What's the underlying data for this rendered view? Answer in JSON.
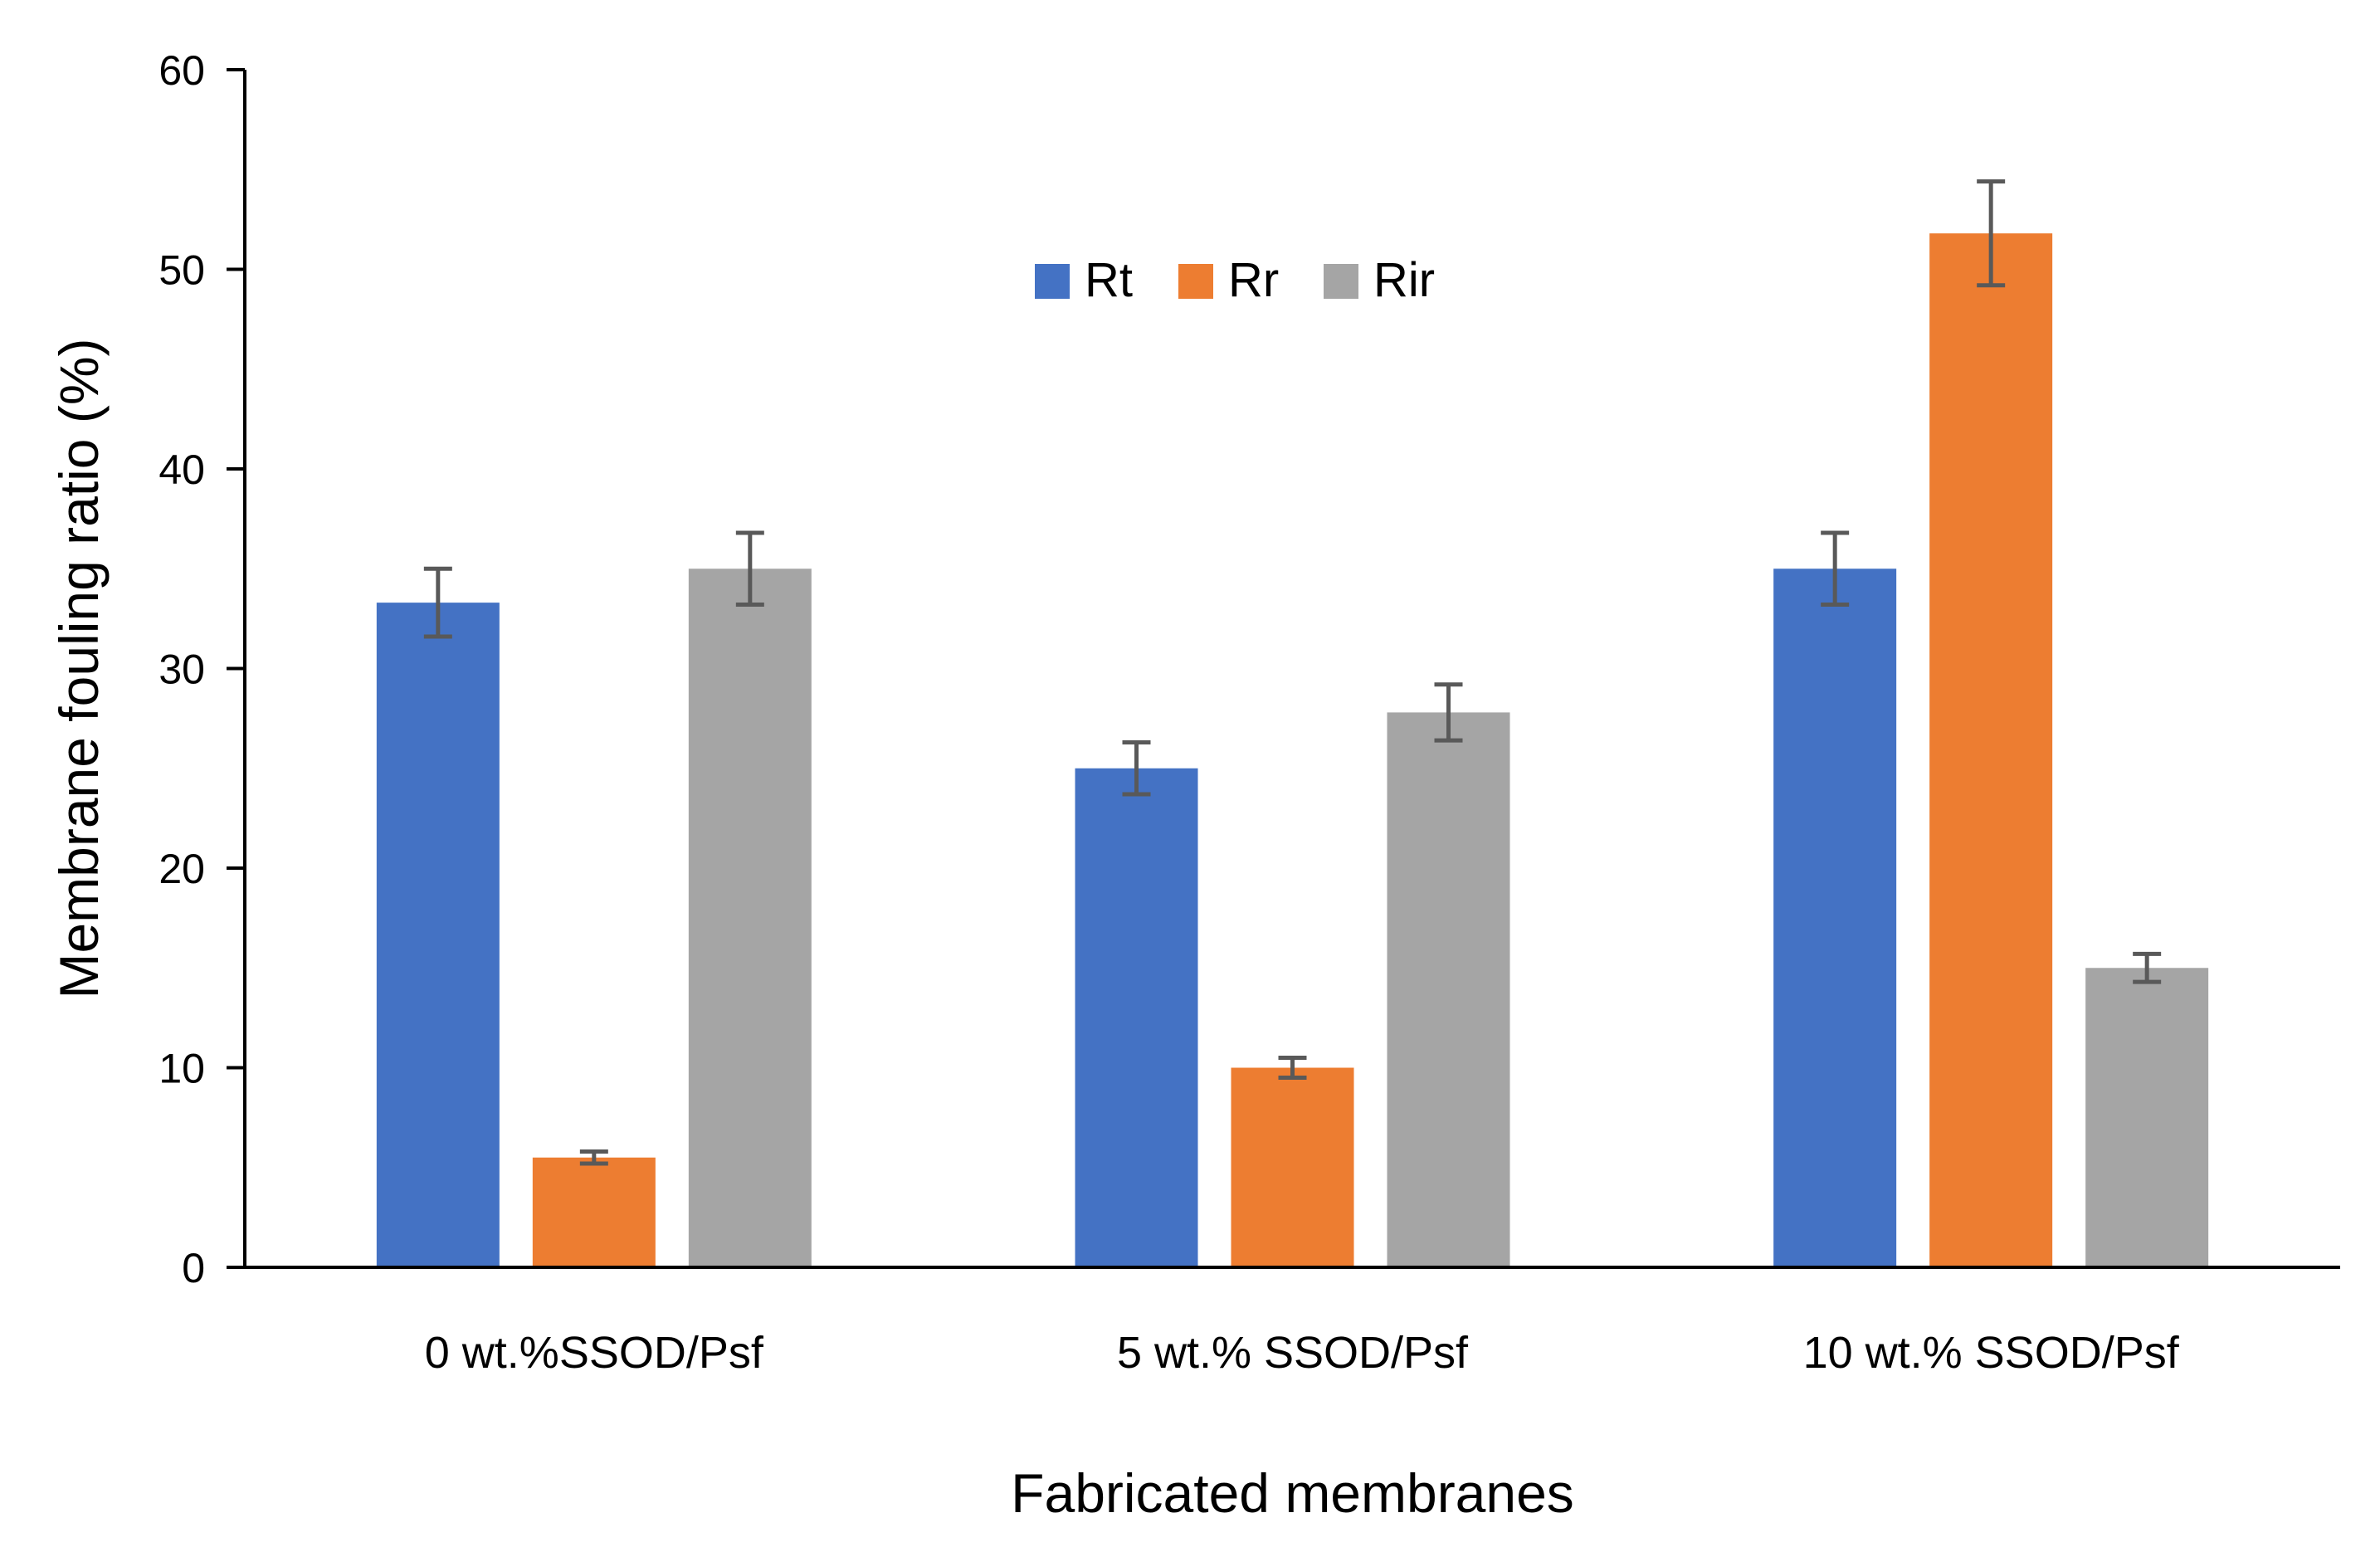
{
  "chart_data": {
    "type": "bar",
    "title": "",
    "xlabel": "Fabricated membranes",
    "ylabel": "Membrane fouling ratio (%)",
    "ylim": [
      0,
      60
    ],
    "yticks": [
      0,
      10,
      20,
      30,
      40,
      50,
      60
    ],
    "grid": false,
    "legend_position": "top-center",
    "categories": [
      "0 wt.%SSOD/Psf",
      "5 wt.% SSOD/Psf",
      "10 wt.% SSOD/Psf"
    ],
    "series": [
      {
        "name": "Rt",
        "color": "#4472C4",
        "values": [
          33.3,
          25.0,
          35.0
        ],
        "errors": [
          1.7,
          1.3,
          1.8
        ]
      },
      {
        "name": "Rr",
        "color": "#ED7D31",
        "values": [
          5.5,
          10.0,
          51.8
        ],
        "errors": [
          0.3,
          0.5,
          2.6
        ]
      },
      {
        "name": "Rir",
        "color": "#A5A5A5",
        "values": [
          35.0,
          27.8,
          15.0
        ],
        "errors": [
          1.8,
          1.4,
          0.7
        ]
      }
    ],
    "errorbar_color": "#595959",
    "axis_color": "#000000"
  }
}
